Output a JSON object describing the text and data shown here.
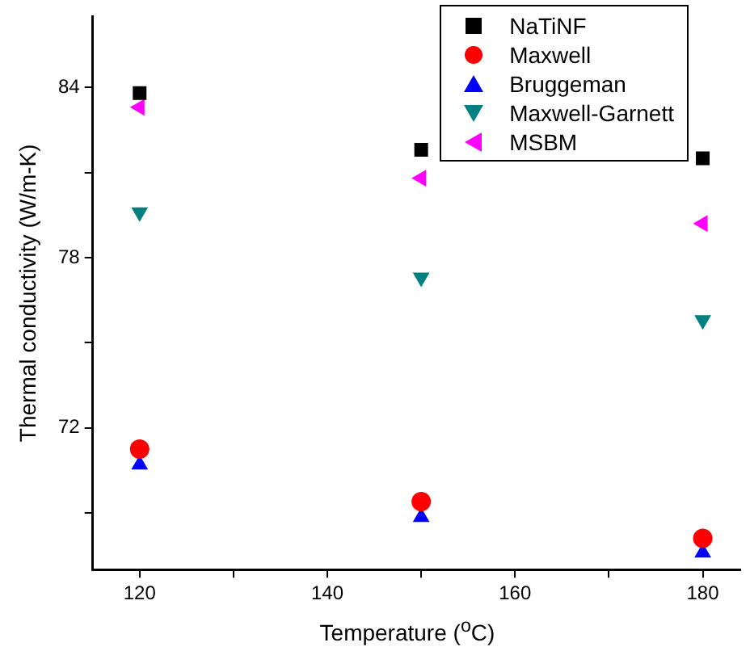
{
  "chart_data": {
    "type": "scatter",
    "xlabel": "Temperature ($^{o}$C)",
    "ylabel": "Thermal conductivity (W/m-K)",
    "x": [
      120,
      150,
      180
    ],
    "series": [
      {
        "name": "NaTiNF",
        "color": "#000000",
        "marker": "square",
        "values": [
          83.8,
          81.8,
          81.5
        ]
      },
      {
        "name": "Maxwell",
        "color": "#ff0000",
        "marker": "circle",
        "values": [
          71.25,
          69.4,
          68.1
        ]
      },
      {
        "name": "Bruggeman",
        "color": "#0000ff",
        "marker": "triangle",
        "values": [
          70.7,
          68.85,
          67.6
        ]
      },
      {
        "name": "Maxwell-Garnett",
        "color": "#008080",
        "marker": "triangle-down",
        "values": [
          79.6,
          77.3,
          75.8
        ]
      },
      {
        "name": "MSBM",
        "color": "#ff00ff",
        "marker": "triangle-left",
        "values": [
          83.3,
          80.8,
          79.2
        ]
      }
    ],
    "xlim": [
      115,
      184
    ],
    "xticks": [
      120,
      {
        "value": 130,
        "label": null
      },
      140,
      {
        "value": 150,
        "label": null
      },
      160,
      {
        "value": 170,
        "label": null
      },
      180
    ],
    "ylim": [
      67,
      86.5
    ],
    "yticks": [
      {
        "value": 69,
        "label": null
      },
      72,
      {
        "value": 75,
        "label": null
      },
      78,
      {
        "value": 81,
        "label": null
      },
      84
    ],
    "legend": "top right",
    "grid": false
  }
}
